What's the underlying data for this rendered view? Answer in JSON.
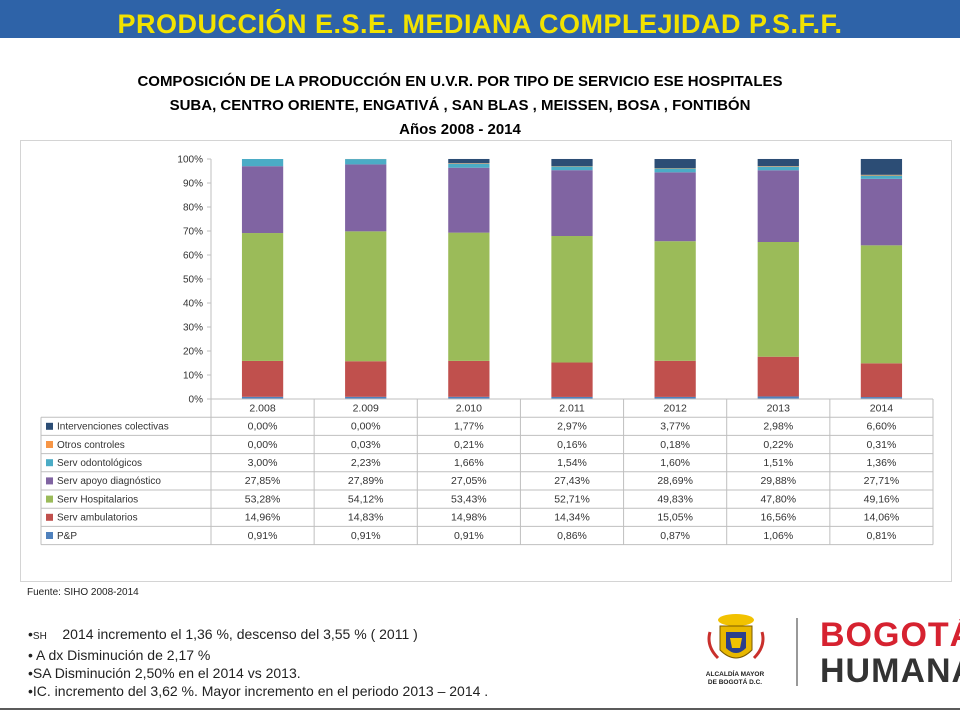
{
  "header": {
    "title": "PRODUCCIÓN E.S.E. MEDIANA COMPLEJIDAD P.S.F.F."
  },
  "chart_title": {
    "line1": "COMPOSICIÓN DE LA PRODUCCIÓN EN U.V.R. POR TIPO DE SERVICIO ESE HOSPITALES",
    "line2": "SUBA, CENTRO ORIENTE, ENGATIVÁ , SAN BLAS , MEISSEN, BOSA , FONTIBÓN",
    "line3": "Años 2008 - 2014"
  },
  "chart_data": {
    "type": "bar",
    "stacked": "percent",
    "categories": [
      "2.008",
      "2.009",
      "2.010",
      "2.011",
      "2012",
      "2013",
      "2014"
    ],
    "ylim": [
      0,
      100
    ],
    "yticks": [
      "0%",
      "10%",
      "20%",
      "30%",
      "40%",
      "50%",
      "60%",
      "70%",
      "80%",
      "90%",
      "100%"
    ],
    "series": [
      {
        "name": "P&P",
        "color": "#4f81bd",
        "values": [
          0.91,
          0.91,
          0.91,
          0.86,
          0.87,
          1.06,
          0.81
        ],
        "labels": [
          "0,91%",
          "0,91%",
          "0,91%",
          "0,86%",
          "0,87%",
          "1,06%",
          "0,81%"
        ]
      },
      {
        "name": "Serv ambulatorios",
        "color": "#c0504d",
        "values": [
          14.96,
          14.83,
          14.98,
          14.34,
          15.05,
          16.56,
          14.06
        ],
        "labels": [
          "14,96%",
          "14,83%",
          "14,98%",
          "14,34%",
          "15,05%",
          "16,56%",
          "14,06%"
        ]
      },
      {
        "name": "Serv Hospitalarios",
        "color": "#9bbb59",
        "values": [
          53.28,
          54.12,
          53.43,
          52.71,
          49.83,
          47.8,
          49.16
        ],
        "labels": [
          "53,28%",
          "54,12%",
          "53,43%",
          "52,71%",
          "49,83%",
          "47,80%",
          "49,16%"
        ]
      },
      {
        "name": "Serv apoyo diagnóstico",
        "color": "#8064a2",
        "values": [
          27.85,
          27.89,
          27.05,
          27.43,
          28.69,
          29.88,
          27.71
        ],
        "labels": [
          "27,85%",
          "27,89%",
          "27,05%",
          "27,43%",
          "28,69%",
          "29,88%",
          "27,71%"
        ]
      },
      {
        "name": "Serv odontológicos",
        "color": "#4bacc6",
        "values": [
          3.0,
          2.23,
          1.66,
          1.54,
          1.6,
          1.51,
          1.36
        ],
        "labels": [
          "3,00%",
          "2,23%",
          "1,66%",
          "1,54%",
          "1,60%",
          "1,51%",
          "1,36%"
        ]
      },
      {
        "name": "Otros controles",
        "color": "#f79646",
        "values": [
          0.0,
          0.03,
          0.21,
          0.16,
          0.18,
          0.22,
          0.31
        ],
        "labels": [
          "0,00%",
          "0,03%",
          "0,21%",
          "0,16%",
          "0,18%",
          "0,22%",
          "0,31%"
        ]
      },
      {
        "name": "Intervenciones colectivas",
        "color": "#2c4d75",
        "values": [
          0.0,
          0.0,
          1.77,
          2.97,
          3.77,
          2.98,
          6.6
        ],
        "labels": [
          "0,00%",
          "0,00%",
          "1,77%",
          "2,97%",
          "3,77%",
          "2,98%",
          "6,60%"
        ]
      }
    ],
    "table_row_order": [
      "Intervenciones colectivas",
      "Otros controles",
      "Serv odontológicos",
      "Serv apoyo diagnóstico",
      "Serv Hospitalarios",
      "Serv ambulatorios",
      "P&P"
    ],
    "legend": "data-table"
  },
  "source": "Fuente: SIHO 2008-2014",
  "notes": {
    "n1_prefix": "SH",
    "n1_text": "2014 incremento el 1,36 %, descenso  del 3,55 % ( 2011 )",
    "n2": "A dx   Disminución de 2,17 %",
    "n3": "SA     Disminución  2,50% en el 2014 vs 2013.",
    "n4": "IC.       incremento del 3,62 %. Mayor incremento en el periodo 2013 – 2014 ."
  },
  "logos": {
    "alcaldia_line1": "ALCALDÍA MAYOR",
    "alcaldia_line2": "DE BOGOTÁ D.C.",
    "brand_top": "BOGOTÁ",
    "brand_bottom": "HUMANA",
    "brand_color": "#d62230"
  }
}
